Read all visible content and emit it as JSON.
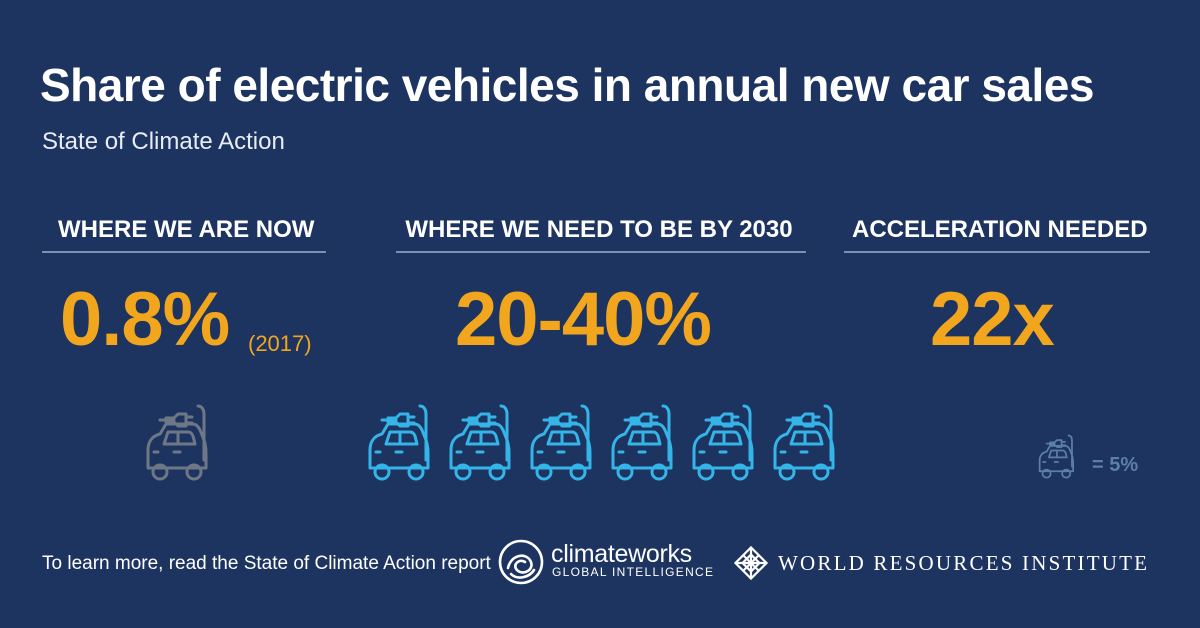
{
  "header": {
    "title": "Share of electric vehicles in annual new car sales",
    "subtitle": "State of Climate Action"
  },
  "columns": [
    {
      "heading": "WHERE WE ARE NOW",
      "value": "0.8%",
      "note": "(2017)",
      "icon_count": 1,
      "icon_color": "#6e7785"
    },
    {
      "heading": "WHERE WE NEED TO BE BY 2030",
      "value": "20-40%",
      "icon_count": 6,
      "icon_color": "#35b4e8"
    },
    {
      "heading": "ACCELERATION NEEDED",
      "value": "22x"
    }
  ],
  "legend": {
    "label": "= 5%",
    "icon": "electric-car-icon",
    "color": "#5b7fa8"
  },
  "footer": {
    "text": "To learn more, read the State of Climate Action report",
    "logo1_name": "climateworks",
    "logo1_sub": "GLOBAL INTELLIGENCE",
    "logo2_name": "WORLD RESOURCES INSTITUTE"
  },
  "colors": {
    "background": "#1d3461",
    "accent": "#f2a61e",
    "rule": "#7d8fb0"
  }
}
